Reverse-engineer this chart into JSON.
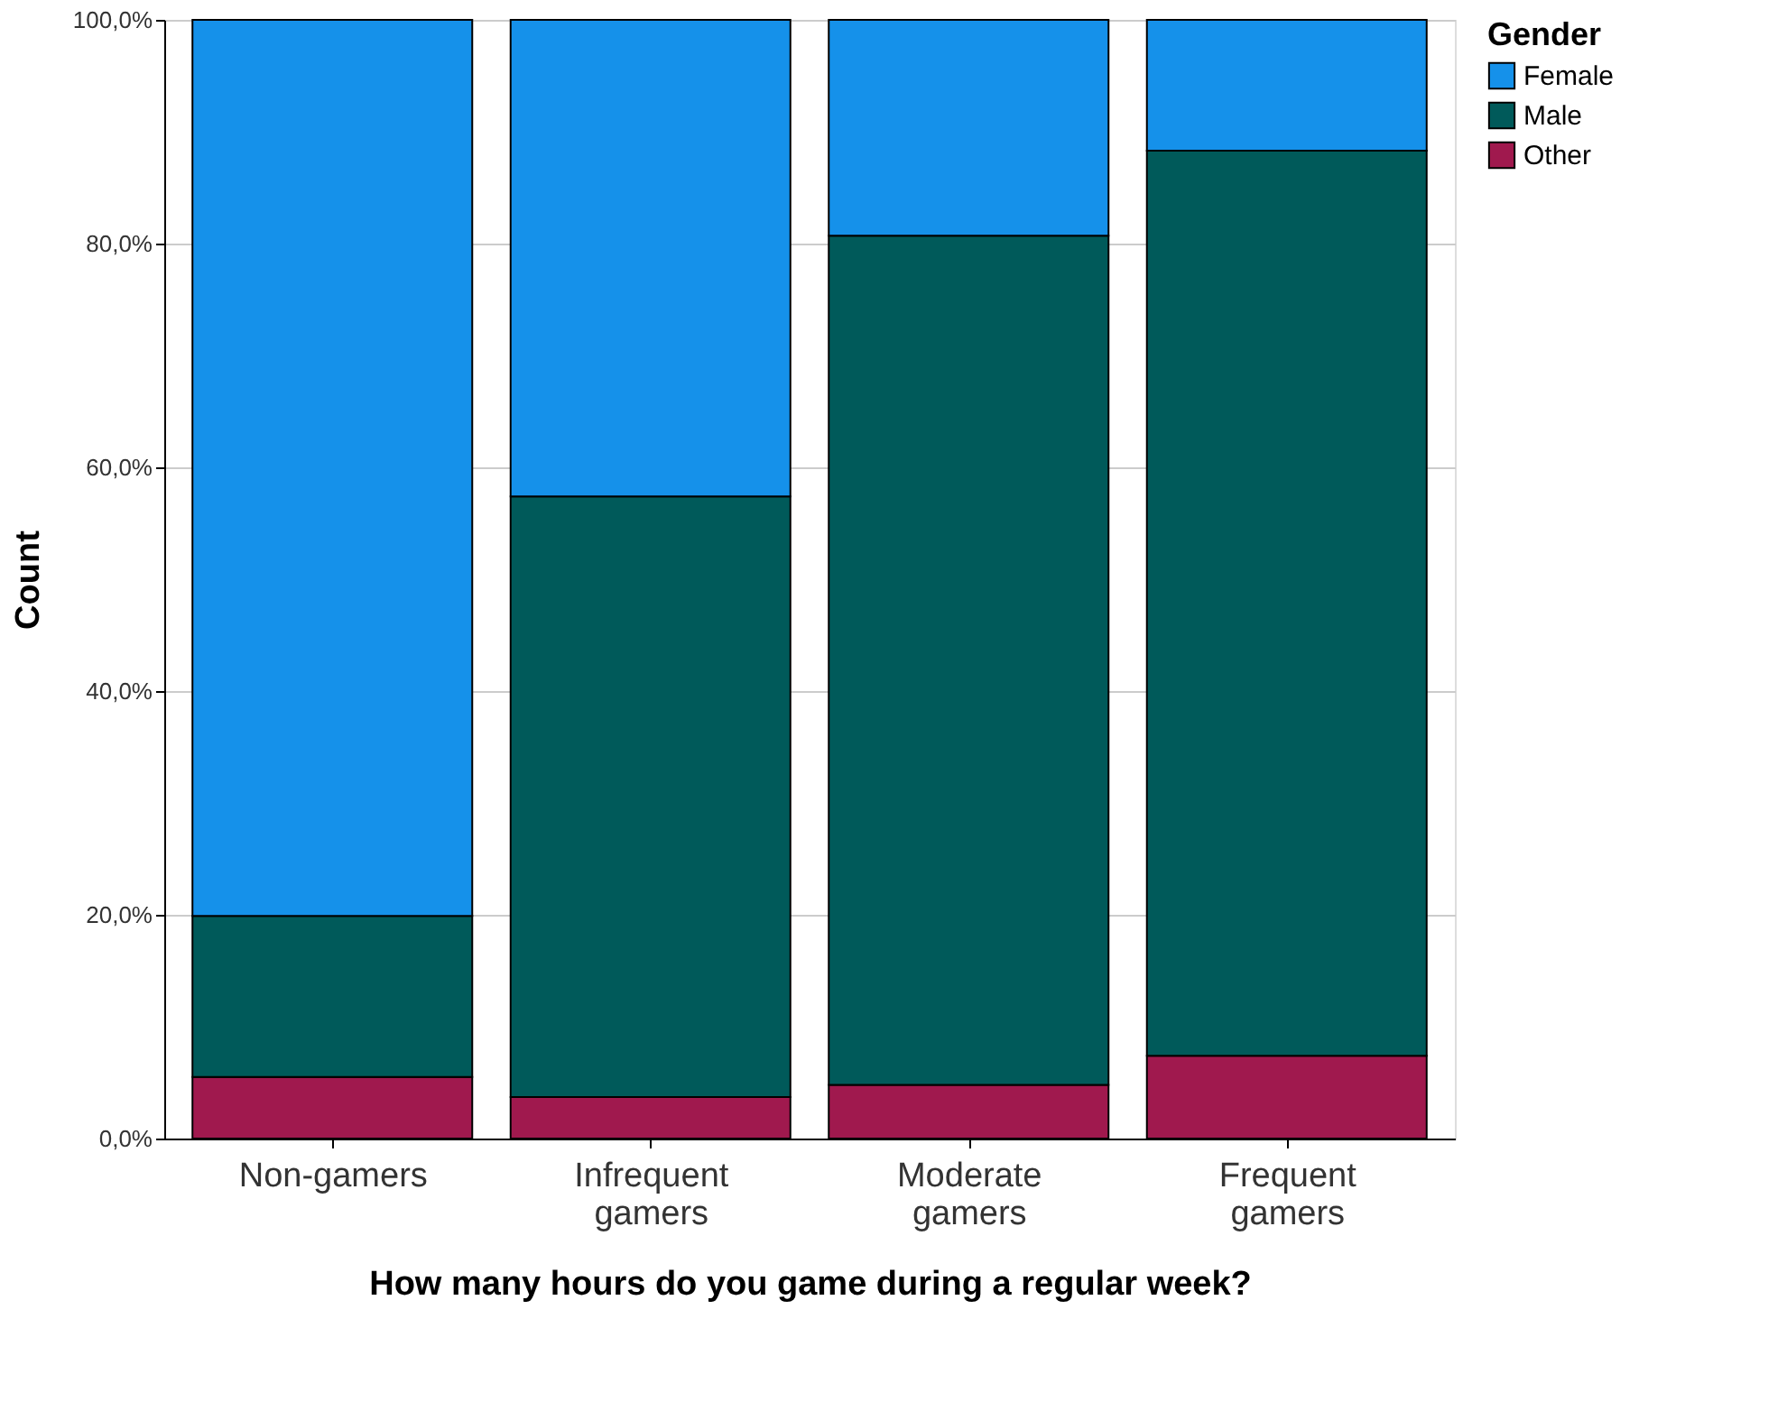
{
  "chart_data": {
    "type": "bar",
    "stacked": true,
    "xlabel": "How many hours do you game during a regular week?",
    "ylabel": "Count",
    "legend_title": "Gender",
    "categories": [
      "Non-gamers",
      "Infrequent gamers",
      "Moderate gamers",
      "Frequent gamers"
    ],
    "series": [
      {
        "name": "Other",
        "color": "#a0194e",
        "values": [
          5.5,
          3.7,
          4.8,
          7.4
        ]
      },
      {
        "name": "Male",
        "color": "#005a5a",
        "values": [
          14.4,
          53.7,
          75.9,
          80.9
        ]
      },
      {
        "name": "Female",
        "color": "#1591ea",
        "values": [
          80.1,
          42.6,
          19.3,
          11.7
        ]
      }
    ],
    "ylim": [
      0,
      100
    ],
    "yticks": [
      {
        "value": 0,
        "label": "0,0%"
      },
      {
        "value": 20,
        "label": "20,0%"
      },
      {
        "value": 40,
        "label": "40,0%"
      },
      {
        "value": 60,
        "label": "60,0%"
      },
      {
        "value": 80,
        "label": "80,0%"
      },
      {
        "value": 100,
        "label": "100,0%"
      }
    ],
    "grid": "y",
    "legend": "top right"
  }
}
